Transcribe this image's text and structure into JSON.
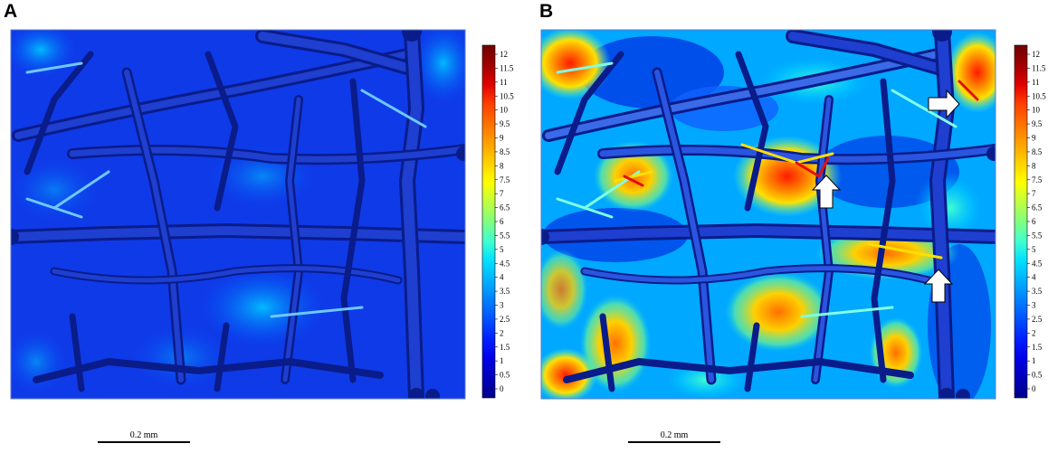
{
  "panels": [
    {
      "id": "A",
      "letter": "A",
      "scalebar_label": "0.2 mm"
    },
    {
      "id": "B",
      "letter": "B",
      "scalebar_label": "0.2 mm"
    }
  ],
  "colorbar": {
    "ticks": [
      "12",
      "11.5",
      "11",
      "10.5",
      "10",
      "9.5",
      "9",
      "8.5",
      "8",
      "7.5",
      "7",
      "6.5",
      "6",
      "5.5",
      "5",
      "4.5",
      "4",
      "3.5",
      "3",
      "2.5",
      "2",
      "1.5",
      "1",
      "0.5",
      "0"
    ],
    "colors": [
      "#00008c",
      "#0000b8",
      "#0000e6",
      "#0020ff",
      "#0050ff",
      "#0080ff",
      "#00b0ff",
      "#00e0ff",
      "#40ffd0",
      "#80ff80",
      "#c0ff40",
      "#ffff00",
      "#ffd000",
      "#ffa000",
      "#ff7000",
      "#ff4000",
      "#e00000",
      "#a00000",
      "#700000"
    ]
  },
  "annotations": {
    "panel_B_arrows": [
      "arrow-right",
      "arrow-up",
      "arrow-up"
    ]
  }
}
